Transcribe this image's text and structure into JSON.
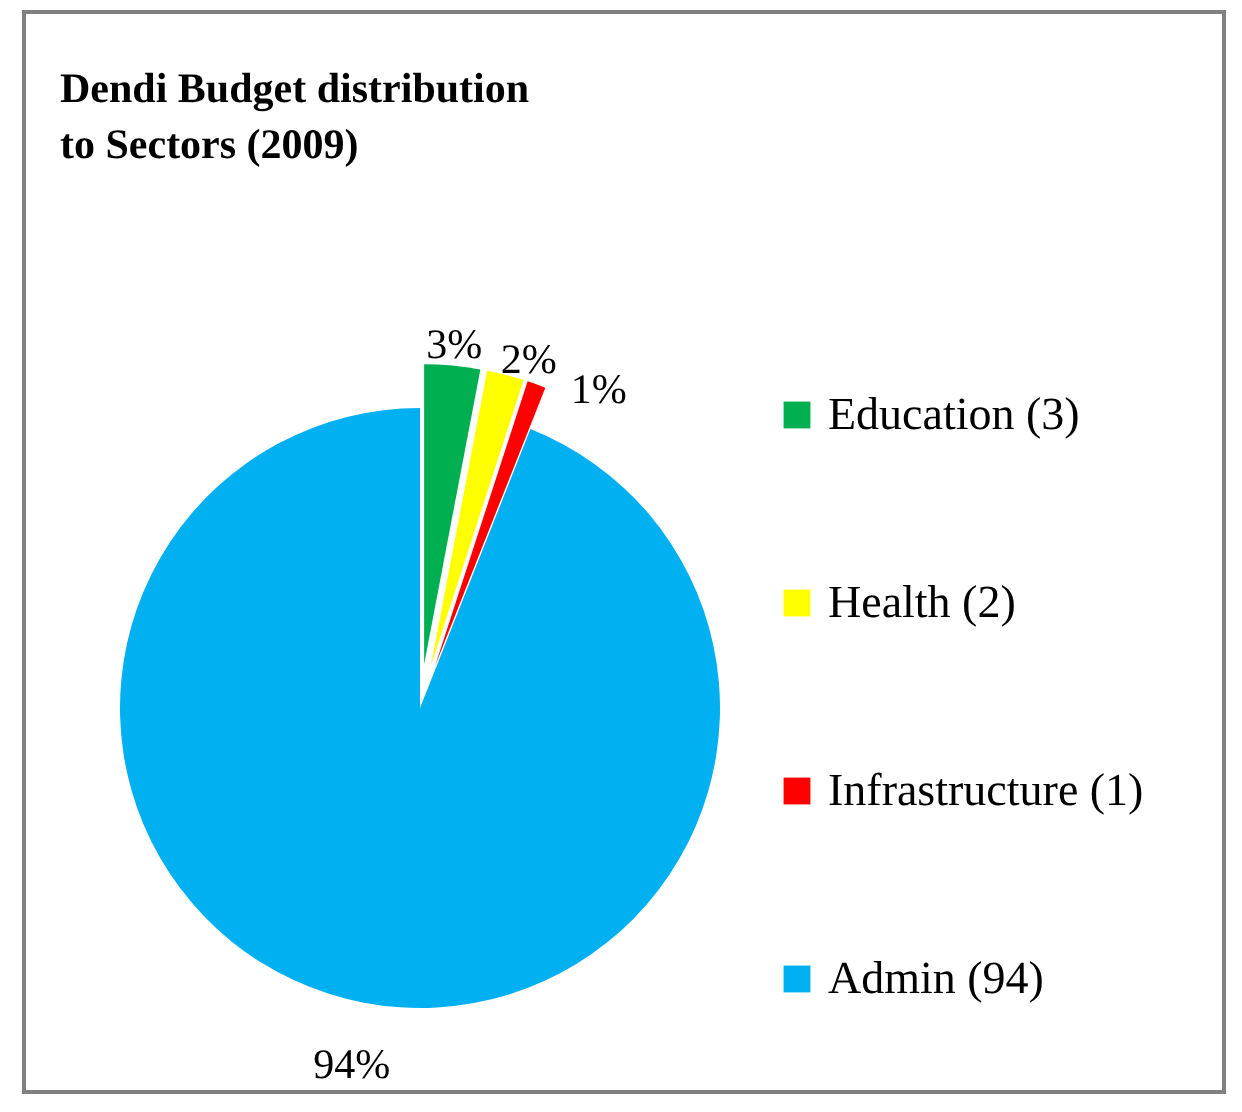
{
  "chart_data": {
    "type": "pie",
    "title": "Dendi Budget distribution to  Sectors (2009)",
    "categories": [
      "Education (3)",
      "Health (2)",
      "Infrastructure (1)",
      "Admin (94)"
    ],
    "values": [
      3,
      2,
      1,
      94
    ],
    "colors": [
      "#00b050",
      "#ffff00",
      "#ff0000",
      "#00b0f0"
    ],
    "value_labels": [
      "3%",
      "2%",
      "1%",
      "94%"
    ],
    "legend": "right"
  }
}
